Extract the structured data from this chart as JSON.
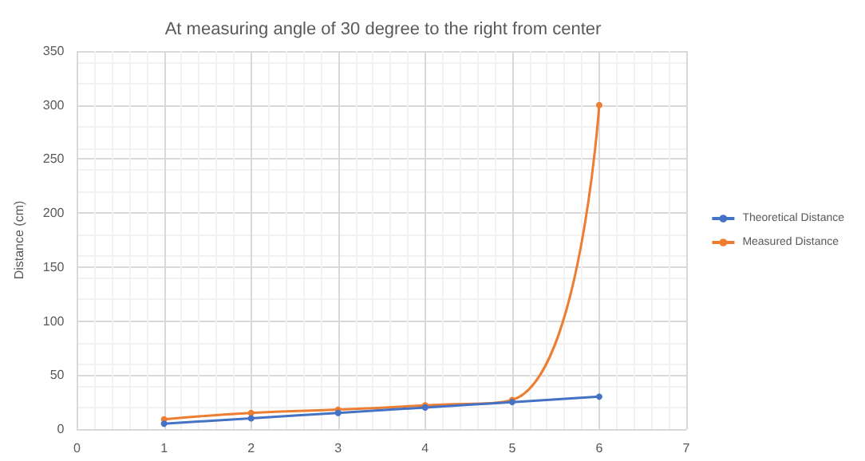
{
  "chart_data": {
    "type": "line",
    "title": "At measuring angle of 30 degree to the right from center",
    "ylabel": "Distance (cm)",
    "x": [
      1,
      2,
      3,
      4,
      5,
      6
    ],
    "xlim": [
      0,
      7
    ],
    "xticks": [
      0,
      1,
      2,
      3,
      4,
      5,
      6,
      7
    ],
    "ylim": [
      0,
      350
    ],
    "yticks": [
      0,
      50,
      100,
      150,
      200,
      250,
      300,
      350
    ],
    "series": [
      {
        "name": "Theoretical Distance",
        "color": "#4472c4",
        "values": [
          5,
          10,
          15,
          20,
          25,
          30
        ]
      },
      {
        "name": "Measured Distance",
        "color": "#ed7d31",
        "values": [
          9,
          15,
          18,
          22,
          27,
          300
        ]
      }
    ],
    "grid": true,
    "legend": "right",
    "marker": "circle",
    "line_style": "solid"
  }
}
